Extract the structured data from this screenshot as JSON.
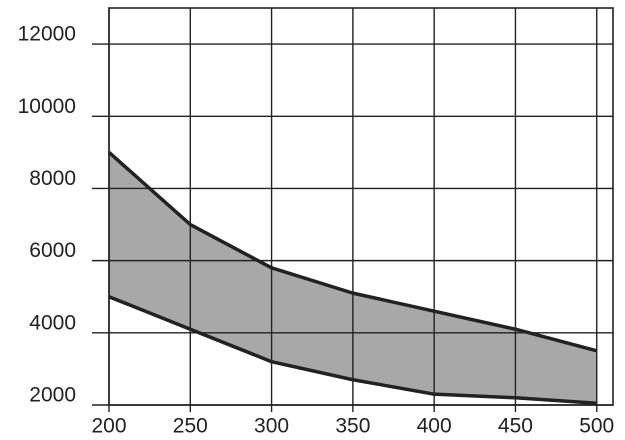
{
  "chart_data": {
    "type": "band",
    "x": [
      200,
      250,
      300,
      350,
      400,
      450,
      500
    ],
    "series": [
      {
        "color": "#222222",
        "values": [
          9000,
          7000,
          5800,
          5100,
          4600,
          4100,
          3500
        ]
      },
      {
        "color": "#222222",
        "values": [
          5000,
          4100,
          3200,
          2700,
          2300,
          2200,
          2050
        ]
      }
    ],
    "fill": "#a8a8a8",
    "xlim": [
      200,
      510
    ],
    "ylim": [
      2000,
      13000
    ],
    "xticks": [
      200,
      250,
      300,
      350,
      400,
      450,
      500
    ],
    "yticks": [
      2000,
      4000,
      6000,
      8000,
      10000,
      12000
    ],
    "grid": true
  }
}
